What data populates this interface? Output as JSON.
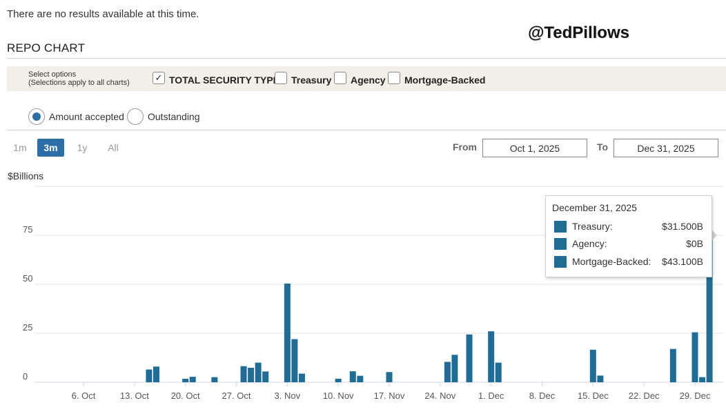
{
  "notice": "There are no results available at this time.",
  "watermark": "@TedPillows",
  "section_title": "REPO CHART",
  "options": {
    "hint_line1": "Select options",
    "hint_line2": "(Selections apply to all charts)",
    "checkboxes": [
      {
        "label": "TOTAL SECURITY TYPES",
        "checked": true
      },
      {
        "label": "Treasury",
        "checked": false
      },
      {
        "label": "Agency",
        "checked": false
      },
      {
        "label": "Mortgage-Backed",
        "checked": false
      }
    ],
    "check_mark": "✓"
  },
  "view_mode": {
    "options": [
      {
        "label": "Amount accepted",
        "selected": true
      },
      {
        "label": "Outstanding",
        "selected": false
      }
    ]
  },
  "range": {
    "buttons": [
      "1m",
      "3m",
      "1y",
      "All"
    ],
    "active": "3m"
  },
  "dates": {
    "from_label": "From",
    "from_value": "Oct 1, 2025",
    "to_label": "To",
    "to_value": "Dec 31, 2025"
  },
  "y_unit": "$Billions",
  "tooltip": {
    "date": "December 31, 2025",
    "rows": [
      {
        "name": "Treasury:",
        "value": "$31.500B"
      },
      {
        "name": "Agency:",
        "value": "$0B"
      },
      {
        "name": "Mortgage-Backed:",
        "value": "$43.100B"
      }
    ]
  },
  "colors": {
    "bar": "#1f6d96",
    "accent": "#2e6ea6",
    "grid": "#e3e3e3"
  },
  "chart_data": {
    "type": "bar",
    "title": "",
    "xlabel": "",
    "ylabel": "$Billions",
    "ylim": [
      0,
      100
    ],
    "yticks": [
      0,
      25,
      50,
      75
    ],
    "x_ticks": [
      "6. Oct",
      "13. Oct",
      "20. Oct",
      "27. Oct",
      "3. Nov",
      "10. Nov",
      "17. Nov",
      "24. Nov",
      "1. Dec",
      "8. Dec",
      "15. Dec",
      "22. Dec",
      "29. Dec"
    ],
    "x_tick_dates": [
      "2025-10-06",
      "2025-10-13",
      "2025-10-20",
      "2025-10-27",
      "2025-11-03",
      "2025-11-10",
      "2025-11-17",
      "2025-11-24",
      "2025-12-01",
      "2025-12-08",
      "2025-12-15",
      "2025-12-22",
      "2025-12-29"
    ],
    "x_range": [
      "2025-10-01",
      "2025-12-31"
    ],
    "grid": true,
    "series": [
      {
        "name": "TOTAL SECURITY TYPES",
        "points": [
          {
            "x": "2025-10-15",
            "y": 6.5
          },
          {
            "x": "2025-10-16",
            "y": 8.0
          },
          {
            "x": "2025-10-20",
            "y": 1.8
          },
          {
            "x": "2025-10-21",
            "y": 2.8
          },
          {
            "x": "2025-10-24",
            "y": 2.6
          },
          {
            "x": "2025-10-28",
            "y": 8.2
          },
          {
            "x": "2025-10-29",
            "y": 7.4
          },
          {
            "x": "2025-10-30",
            "y": 10.0
          },
          {
            "x": "2025-10-31",
            "y": 5.5
          },
          {
            "x": "2025-11-03",
            "y": 50.35
          },
          {
            "x": "2025-11-04",
            "y": 22.0
          },
          {
            "x": "2025-11-05",
            "y": 4.4
          },
          {
            "x": "2025-11-10",
            "y": 1.8
          },
          {
            "x": "2025-11-12",
            "y": 5.6
          },
          {
            "x": "2025-11-13",
            "y": 3.3
          },
          {
            "x": "2025-11-17",
            "y": 5.2
          },
          {
            "x": "2025-11-25",
            "y": 10.4
          },
          {
            "x": "2025-11-26",
            "y": 14.0
          },
          {
            "x": "2025-11-28",
            "y": 24.4
          },
          {
            "x": "2025-12-01",
            "y": 26.0
          },
          {
            "x": "2025-12-02",
            "y": 10.0
          },
          {
            "x": "2025-12-15",
            "y": 16.6
          },
          {
            "x": "2025-12-16",
            "y": 3.4
          },
          {
            "x": "2025-12-26",
            "y": 17.0
          },
          {
            "x": "2025-12-29",
            "y": 25.5
          },
          {
            "x": "2025-12-30",
            "y": 2.6
          },
          {
            "x": "2025-12-31",
            "y": 74.6
          }
        ]
      }
    ]
  }
}
